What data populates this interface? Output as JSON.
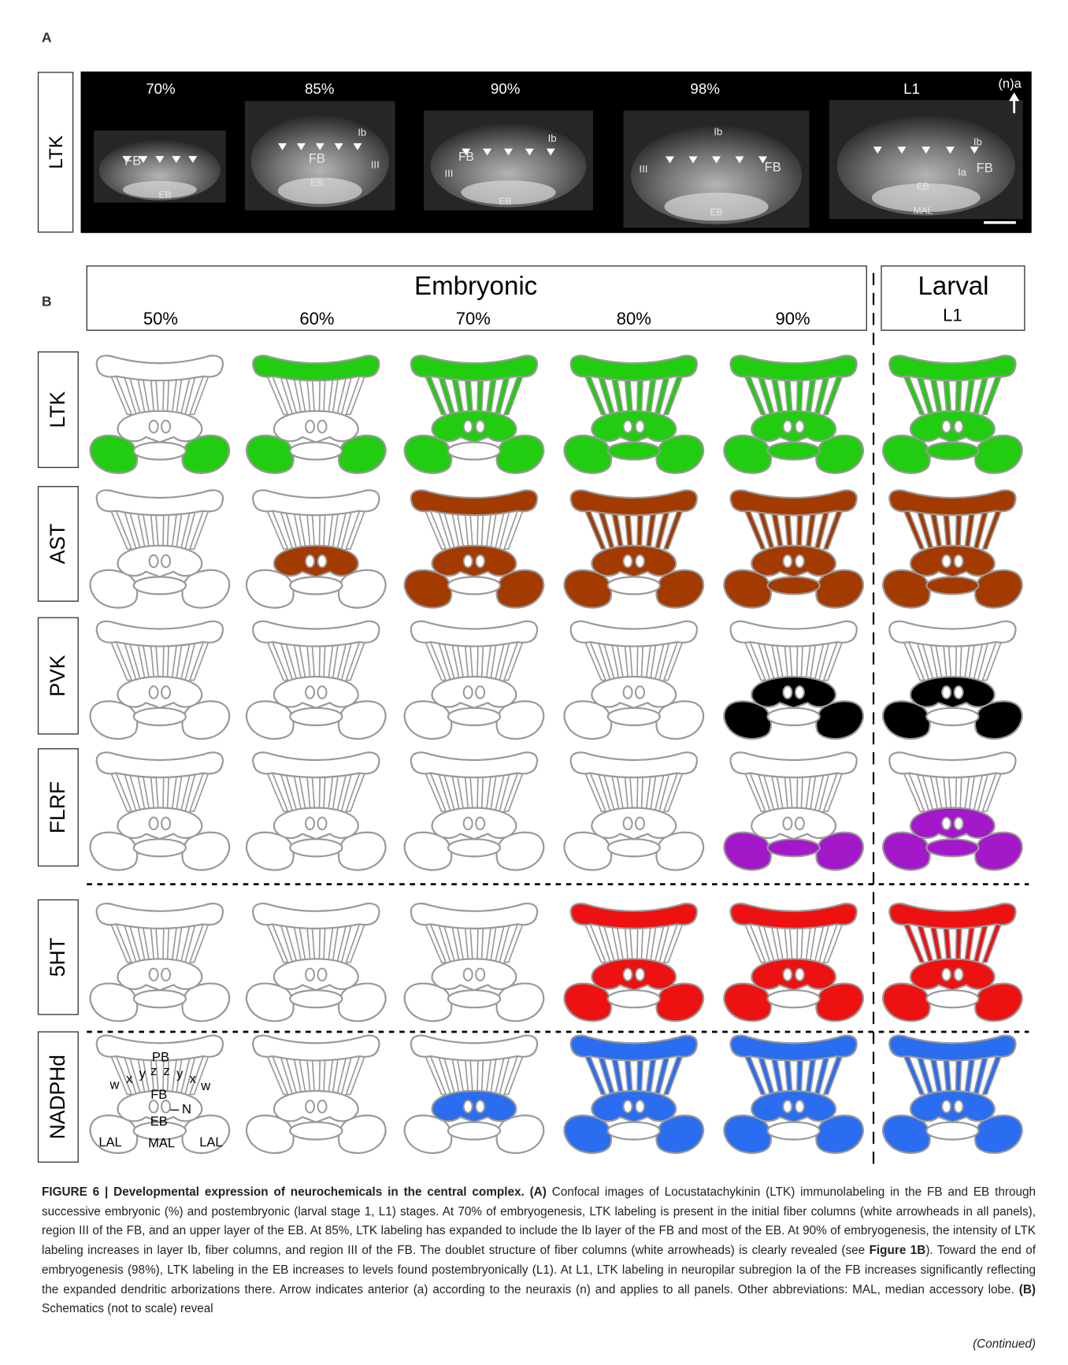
{
  "panel_a": {
    "label": "A",
    "row_label": "LTK",
    "arrow_label": "(n)a",
    "images": [
      {
        "stage": "70%",
        "labels": [
          "FB",
          "EB"
        ]
      },
      {
        "stage": "85%",
        "labels": [
          "Ib",
          "FB",
          "III",
          "EB"
        ]
      },
      {
        "stage": "90%",
        "labels": [
          "Ib",
          "FB",
          "III",
          "EB"
        ]
      },
      {
        "stage": "98%",
        "labels": [
          "Ib",
          "III",
          "FB",
          "EB"
        ]
      },
      {
        "stage": "L1",
        "labels": [
          "Ib",
          "Ia",
          "FB",
          "EB",
          "MAL"
        ]
      }
    ]
  },
  "panel_b": {
    "label": "B",
    "embryonic": {
      "title": "Embryonic",
      "stages": [
        "50%",
        "60%",
        "70%",
        "80%",
        "90%"
      ]
    },
    "larval": {
      "title": "Larval",
      "stages": [
        "L1"
      ]
    },
    "rows": [
      {
        "label": "LTK",
        "color": "#22cc11"
      },
      {
        "label": "AST",
        "color": "#a33a00"
      },
      {
        "label": "PVK",
        "color": "#000000"
      },
      {
        "label": "FLRF",
        "color": "#a318c8"
      },
      {
        "label": "5HT",
        "color": "#ee1111"
      },
      {
        "label": "NADPHd",
        "color": "#2a6df0"
      }
    ],
    "schematic_labels": {
      "pb": "PB",
      "columns": [
        "w",
        "x",
        "y",
        "z",
        "z",
        "y",
        "x",
        "w"
      ],
      "fb": "FB",
      "n": "N",
      "eb": "EB",
      "lal_left": "LAL",
      "mal": "MAL",
      "lal_right": "LAL"
    }
  },
  "caption": {
    "segments": [
      {
        "text": "FIGURE 6 | Developmental expression of neurochemicals in the central complex. ",
        "bold": true
      },
      {
        "text": "(A) ",
        "bold": true
      },
      {
        "text": "Confocal images of Locustatachykinin (LTK) immunolabeling in the FB and EB through successive embryonic (%) and postembryonic (larval stage 1, L1) stages. At 70% of embryogenesis, LTK labeling is present in the initial fiber columns (white arrowheads in all panels), region III of the FB, and an upper layer of the EB. At 85%, LTK labeling has expanded to include the Ib layer of the FB and most of the EB. At 90% of embryogenesis, the intensity of LTK labeling increases in layer Ib, fiber columns, and region III of the FB. The doublet structure of fiber columns (white arrowheads) is clearly revealed (see ",
        "bold": false
      },
      {
        "text": "Figure 1B",
        "bold": true
      },
      {
        "text": "). Toward the end of embryogenesis (98%), LTK labeling in the EB increases to levels found postembryonically (L1). At L1, LTK labeling in neuropilar subregion Ia of the FB increases significantly reflecting the expanded dendritic arborizations there. Arrow indicates anterior (a) according to the neuraxis (n) and applies to all panels. Other abbreviations: MAL, median accessory lobe. ",
        "bold": false
      },
      {
        "text": "(B) ",
        "bold": true
      },
      {
        "text": "Schematics (not to scale) reveal",
        "bold": false
      }
    ],
    "continued": "(Continued)"
  }
}
